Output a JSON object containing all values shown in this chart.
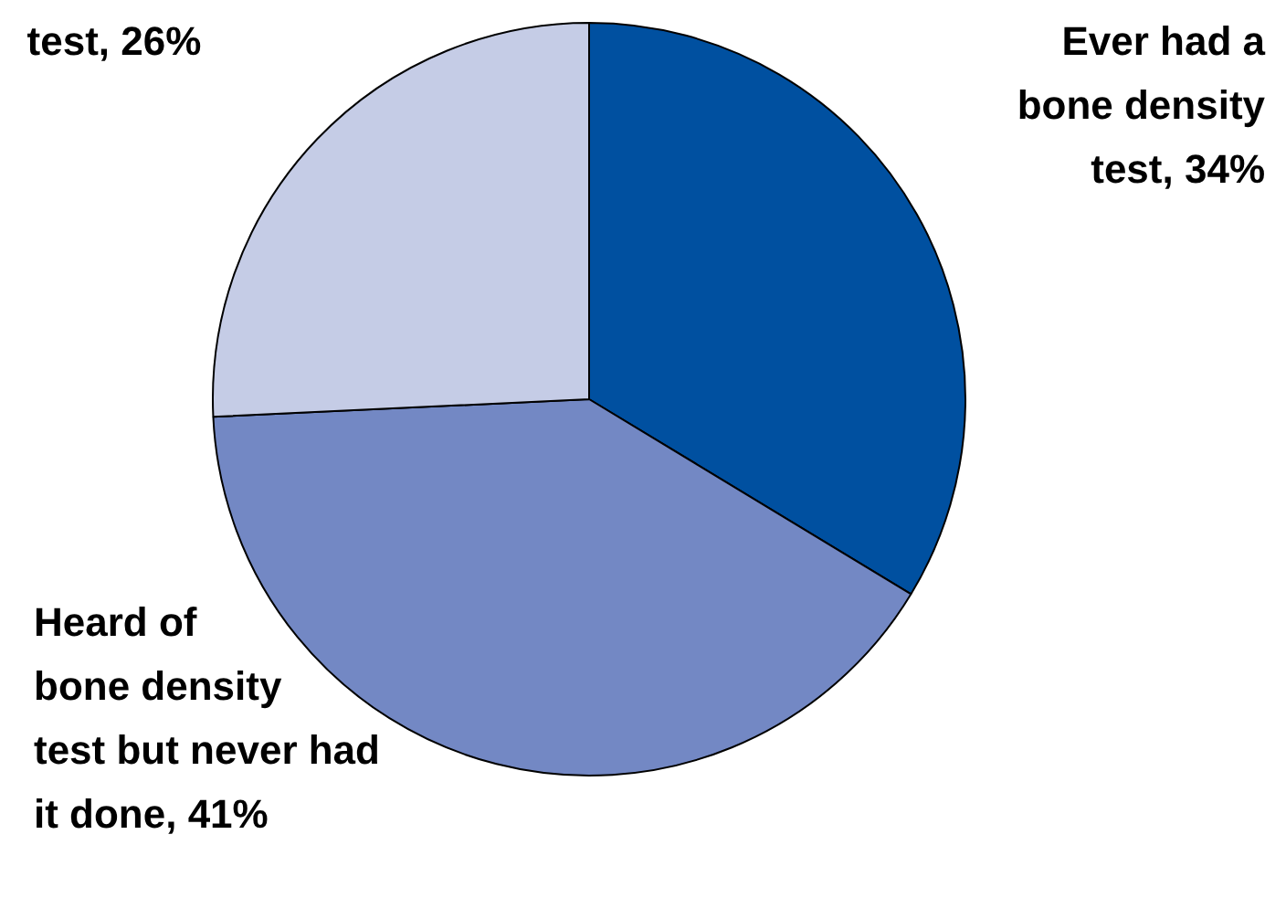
{
  "chart_data": {
    "type": "pie",
    "categories": [
      "Ever had a\nbone density\ntest, 34%",
      "Heard of\nbone density\ntest but never had\nit done, 41%",
      "test, 26%"
    ],
    "values": [
      34,
      41,
      26
    ],
    "colors": [
      "#0050a0",
      "#7388c4",
      "#c5cce6"
    ]
  }
}
